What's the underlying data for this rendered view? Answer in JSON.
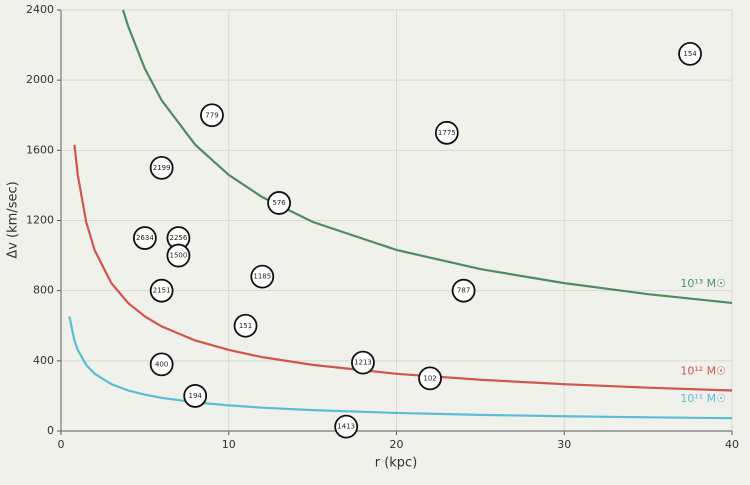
{
  "chart_data": {
    "type": "scatter",
    "x_label": "r (kpc)",
    "y_label": "Δv (km/sec)",
    "xlim": [
      0,
      40
    ],
    "xticks": [
      0,
      10,
      20,
      30,
      40
    ],
    "ylim": [
      0,
      2400
    ],
    "yticks": [
      0,
      400,
      800,
      1200,
      1600,
      2000,
      2400
    ],
    "grid": true,
    "points": {
      "labels": [
        "154",
        "779",
        "1775",
        "2199",
        "576",
        "2634",
        "2256",
        "1500",
        "1185",
        "2151",
        "787",
        "151",
        "400",
        "1213",
        "102",
        "194",
        "1413"
      ],
      "x": [
        37.5,
        9,
        23,
        6,
        13,
        5,
        7,
        7,
        12,
        6,
        24,
        11,
        6,
        18,
        22,
        8,
        17
      ],
      "values": [
        2150,
        1800,
        1700,
        1500,
        1300,
        1100,
        1100,
        1000,
        880,
        800,
        800,
        600,
        380,
        390,
        300,
        200,
        25
      ]
    },
    "curves": [
      {
        "name": "10¹³ M☉",
        "color": "#4e8d62",
        "x": [
          3.7,
          4,
          5,
          6,
          8,
          10,
          12,
          15,
          20,
          25,
          30,
          35,
          40
        ],
        "values": [
          2400,
          2308,
          2065,
          1885,
          1632,
          1460,
          1333,
          1192,
          1032,
          923,
          843,
          780,
          730
        ]
      },
      {
        "name": "10¹² M☉",
        "color": "#d0554d",
        "x": [
          0.8,
          1,
          1.5,
          2,
          3,
          4,
          5,
          6,
          8,
          10,
          12,
          15,
          20,
          25,
          30,
          35,
          40
        ],
        "values": [
          1632,
          1460,
          1192,
          1032,
          843,
          730,
          653,
          596,
          516,
          462,
          421,
          377,
          326,
          292,
          267,
          247,
          231
        ]
      },
      {
        "name": "10¹¹ M☉",
        "color": "#5bbcd6",
        "x": [
          0.5,
          0.8,
          1,
          1.5,
          2,
          3,
          4,
          5,
          6,
          8,
          10,
          12,
          15,
          20,
          25,
          30,
          35,
          40
        ],
        "values": [
          653,
          516,
          462,
          377,
          327,
          267,
          231,
          207,
          189,
          163,
          146,
          133,
          119,
          103,
          92,
          84,
          78,
          73
        ]
      }
    ]
  }
}
